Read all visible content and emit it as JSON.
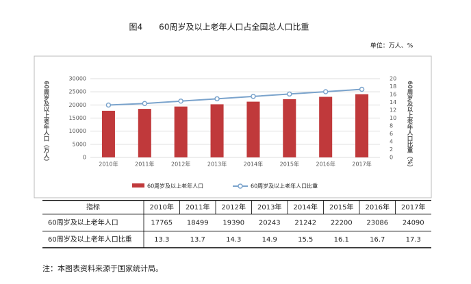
{
  "chart_data": {
    "type": "bar-line",
    "title": "图4　　60周岁及以上老年人口占全国总人口比重",
    "unit": "单位：万人、%",
    "y_label": "60周岁及以上老年人口（万人）",
    "y2_label": "60周岁及以上老年人口比重（%）",
    "categories": [
      "2010年",
      "2011年",
      "2012年",
      "2013年",
      "2014年",
      "2015年",
      "2016年",
      "2017年"
    ],
    "series": [
      {
        "name": "60周岁及以上老年人口",
        "color": "#c0393b",
        "type": "bar",
        "values": [
          17765,
          18499,
          19390,
          20243,
          21242,
          22200,
          23086,
          24090
        ]
      },
      {
        "name": "60周岁及以上老年人口比重",
        "color": "#7aa3cc",
        "type": "line",
        "axis": "y2",
        "values": [
          13.3,
          13.7,
          14.3,
          14.9,
          15.5,
          16.1,
          16.7,
          17.3
        ]
      }
    ],
    "ylim": [
      0,
      30000
    ],
    "yticks": [
      0,
      5000,
      10000,
      15000,
      20000,
      25000,
      30000
    ],
    "y2lim": [
      0,
      20
    ],
    "y2ticks": [
      0,
      2,
      4,
      6,
      8,
      10,
      12,
      14,
      16,
      18,
      20
    ],
    "grid": true,
    "legend": "bottom"
  },
  "table": {
    "header": "指标"
  },
  "note": "注：本图表资料来源于国家统计局。"
}
